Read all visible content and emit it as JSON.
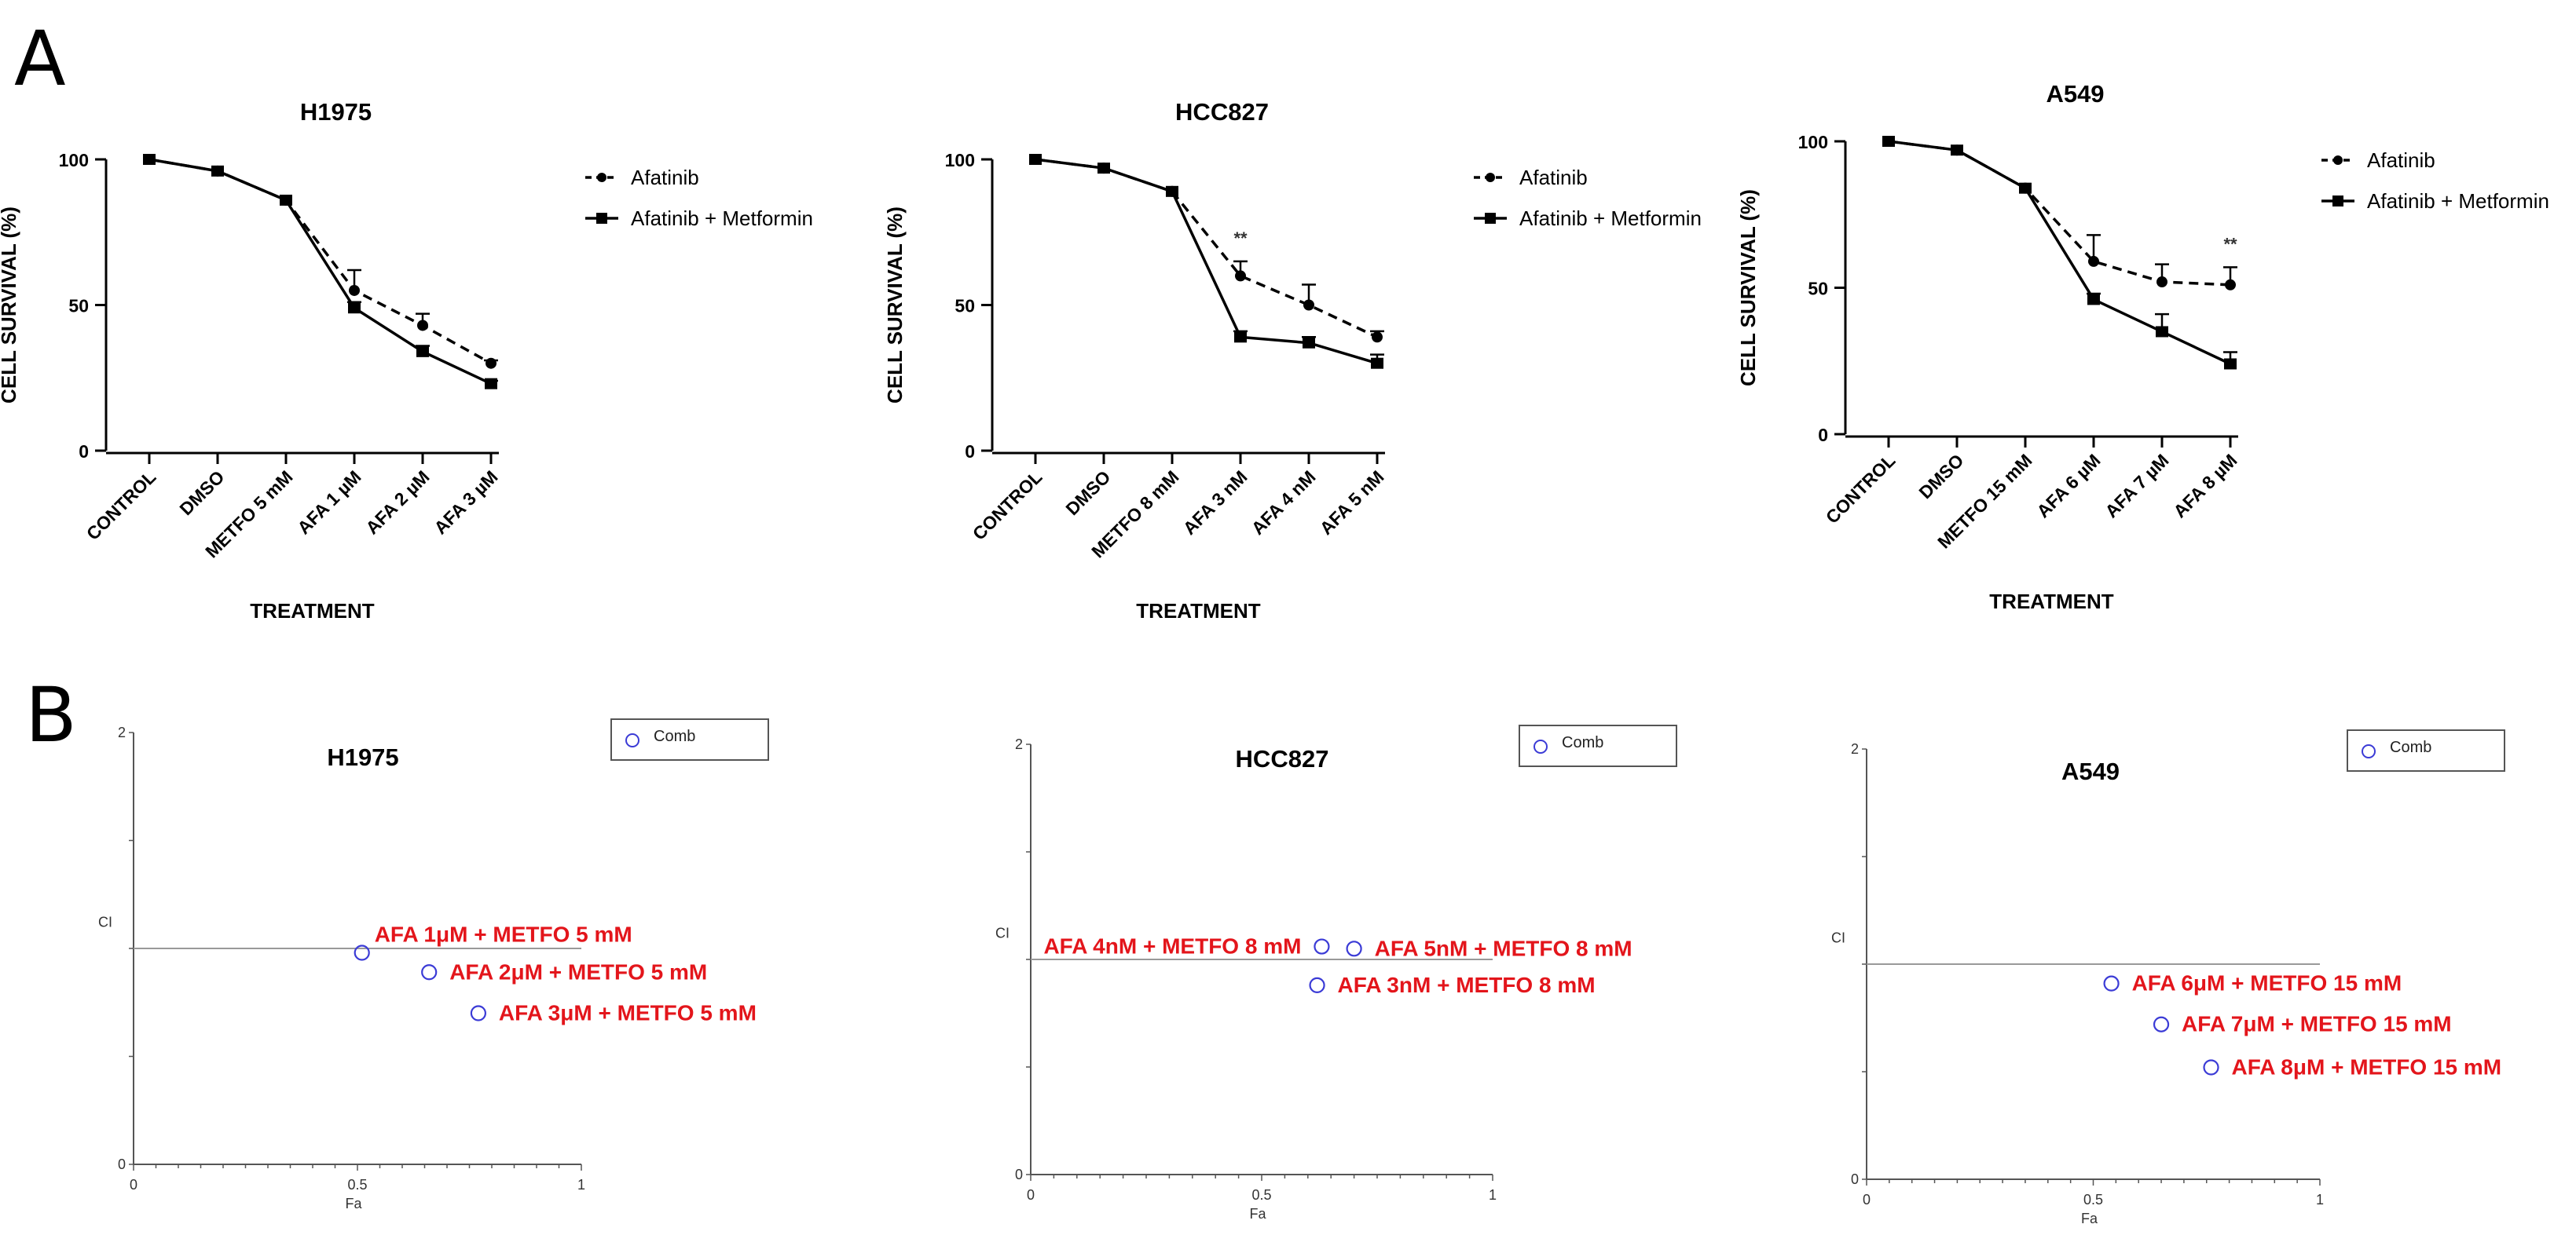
{
  "panel_labels": {
    "a": "A",
    "b": "B"
  },
  "colors": {
    "axis": "#000000",
    "ci_axis": "#555555",
    "ci_ref": "#999999",
    "ci_point": "#3b3bd6",
    "ci_label": "#e3151b"
  },
  "chart_data": [
    {
      "type": "line",
      "panel": "A",
      "title": "H1975",
      "xlabel": "TREATMENT",
      "ylabel": "CELL SURVIVAL (%)",
      "ylim": [
        0,
        100
      ],
      "yticks": [
        "0",
        "50",
        "100"
      ],
      "categories": [
        "CONTROL",
        "DMSO",
        "METFO 5 mM",
        "AFA 1 µM",
        "AFA 2 µM",
        "AFA 3 µM"
      ],
      "legend": [
        "Afatinib",
        "Afatinib + Metformin"
      ],
      "series": [
        {
          "name": "Afatinib",
          "style": "dashed-circle",
          "values": [
            100,
            96,
            86,
            55,
            43,
            30
          ],
          "errors": [
            0,
            0,
            0,
            7,
            4,
            1
          ]
        },
        {
          "name": "Afatinib + Metformin",
          "style": "solid-square",
          "values": [
            100,
            96,
            86,
            49,
            34,
            23
          ],
          "errors": [
            0,
            0,
            0,
            2,
            2,
            1
          ]
        }
      ],
      "annotations": []
    },
    {
      "type": "line",
      "panel": "A",
      "title": "HCC827",
      "xlabel": "TREATMENT",
      "ylabel": "CELL SURVIVAL (%)",
      "ylim": [
        0,
        100
      ],
      "yticks": [
        "0",
        "50",
        "100"
      ],
      "categories": [
        "CONTROL",
        "DMSO",
        "METFO 8 mM",
        "AFA 3 nM",
        "AFA 4 nM",
        "AFA 5 nM"
      ],
      "legend": [
        "Afatinib",
        "Afatinib + Metformin"
      ],
      "series": [
        {
          "name": "Afatinib",
          "style": "dashed-circle",
          "values": [
            100,
            97,
            89,
            60,
            50,
            39
          ],
          "errors": [
            0,
            0,
            0,
            5,
            7,
            2
          ]
        },
        {
          "name": "Afatinib + Metformin",
          "style": "solid-square",
          "values": [
            100,
            97,
            89,
            39,
            37,
            30
          ],
          "errors": [
            0,
            0,
            0,
            2,
            2,
            3
          ]
        }
      ],
      "annotations": [
        {
          "category": "AFA 3 nM",
          "text": "**"
        }
      ]
    },
    {
      "type": "line",
      "panel": "A",
      "title": "A549",
      "xlabel": "TREATMENT",
      "ylabel": "CELL SURVIVAL (%)",
      "ylim": [
        0,
        100
      ],
      "yticks": [
        "0",
        "50",
        "100"
      ],
      "categories": [
        "CONTROL",
        "DMSO",
        "METFO 15 mM",
        "AFA 6 µM",
        "AFA 7 µM",
        "AFA 8 µM"
      ],
      "legend": [
        "Afatinib",
        "Afatinib + Metformin"
      ],
      "series": [
        {
          "name": "Afatinib",
          "style": "dashed-circle",
          "values": [
            100,
            97,
            84,
            59,
            52,
            51
          ],
          "errors": [
            0,
            0,
            0,
            9,
            6,
            6
          ]
        },
        {
          "name": "Afatinib + Metformin",
          "style": "solid-square",
          "values": [
            100,
            97,
            84,
            46,
            35,
            24
          ],
          "errors": [
            0,
            0,
            0,
            2,
            6,
            4
          ]
        }
      ],
      "annotations": [
        {
          "category": "AFA 8 µM",
          "text": "**"
        }
      ]
    },
    {
      "type": "scatter",
      "panel": "B",
      "title": "H1975",
      "xlabel": "Fa",
      "ylabel": "CI",
      "xlim": [
        0,
        1
      ],
      "ylim": [
        0,
        2
      ],
      "xticks": [
        "0",
        "0.5",
        "1"
      ],
      "yticks": [
        "0",
        "2"
      ],
      "reference_line": 1,
      "legend": [
        "Comb"
      ],
      "points": [
        {
          "fa": 0.51,
          "ci": 0.98,
          "label": "AFA 1μM + METFO 5 mM",
          "label_side": "above"
        },
        {
          "fa": 0.66,
          "ci": 0.89,
          "label": "AFA 2μM + METFO 5 mM",
          "label_side": "right"
        },
        {
          "fa": 0.77,
          "ci": 0.7,
          "label": "AFA 3μM + METFO 5 mM",
          "label_side": "right"
        }
      ]
    },
    {
      "type": "scatter",
      "panel": "B",
      "title": "HCC827",
      "xlabel": "Fa",
      "ylabel": "CI",
      "xlim": [
        0,
        1
      ],
      "ylim": [
        0,
        2
      ],
      "xticks": [
        "0",
        "0.5",
        "1"
      ],
      "yticks": [
        "0",
        "2"
      ],
      "reference_line": 1,
      "legend": [
        "Comb"
      ],
      "points": [
        {
          "fa": 0.63,
          "ci": 1.06,
          "label": "AFA 4nM + METFO 8 mM",
          "label_side": "left"
        },
        {
          "fa": 0.7,
          "ci": 1.05,
          "label": "AFA 5nM + METFO 8 mM",
          "label_side": "right"
        },
        {
          "fa": 0.62,
          "ci": 0.88,
          "label": "AFA 3nM + METFO 8 mM",
          "label_side": "right"
        }
      ]
    },
    {
      "type": "scatter",
      "panel": "B",
      "title": "A549",
      "xlabel": "Fa",
      "ylabel": "CI",
      "xlim": [
        0,
        1
      ],
      "ylim": [
        0,
        2
      ],
      "xticks": [
        "0",
        "0.5",
        "1"
      ],
      "yticks": [
        "0",
        "2"
      ],
      "reference_line": 1,
      "legend": [
        "Comb"
      ],
      "points": [
        {
          "fa": 0.54,
          "ci": 0.91,
          "label": "AFA 6μM + METFO 15 mM",
          "label_side": "right"
        },
        {
          "fa": 0.65,
          "ci": 0.72,
          "label": "AFA 7μM + METFO 15 mM",
          "label_side": "right"
        },
        {
          "fa": 0.76,
          "ci": 0.52,
          "label": "AFA 8μM + METFO 15 mM",
          "label_side": "right"
        }
      ]
    }
  ]
}
